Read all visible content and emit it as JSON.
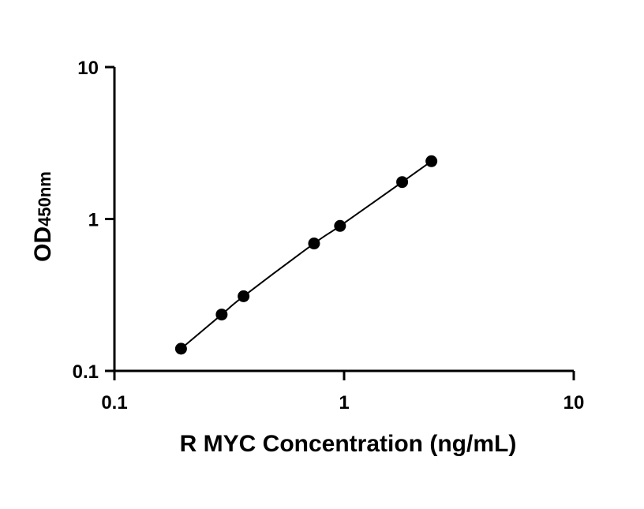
{
  "chart_data": {
    "type": "scatter",
    "xlabel": "R MYC Concentration (ng/mL)",
    "ylabel_main": "OD",
    "ylabel_sub": "450nm",
    "x_scale": "log",
    "y_scale": "log",
    "xlim": [
      0.1,
      10
    ],
    "ylim": [
      0.1,
      10
    ],
    "x_ticks": [
      0.1,
      1,
      10
    ],
    "x_tick_labels": [
      "0.1",
      "1",
      "10"
    ],
    "y_ticks": [
      0.1,
      1,
      10
    ],
    "y_tick_labels": [
      "0.1",
      "1",
      "10"
    ],
    "grid": false,
    "fit_line": true,
    "series": [
      {
        "x": [
          0.195,
          0.293,
          0.365,
          0.74,
          0.96,
          1.79,
          2.4
        ],
        "y": [
          0.14,
          0.235,
          0.31,
          0.69,
          0.9,
          1.75,
          2.4
        ]
      }
    ],
    "colors": {
      "marker": "#000000",
      "axis": "#000000",
      "background": "#ffffff"
    }
  }
}
